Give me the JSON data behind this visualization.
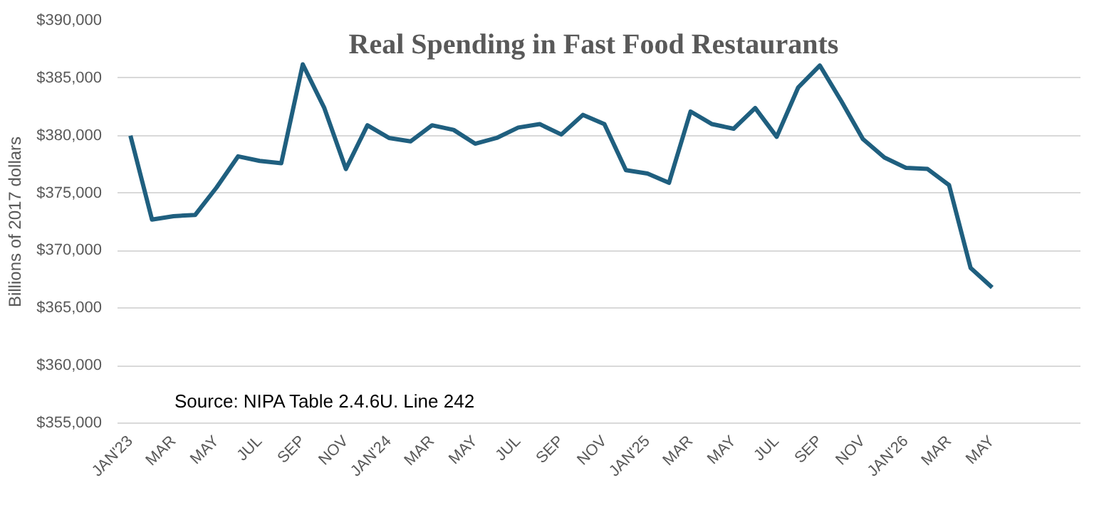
{
  "chart_data": {
    "type": "line",
    "title": "Real Spending in Fast Food Restaurants",
    "ylabel": "Billions of 2017 dollars",
    "categories": [
      "JAN'23",
      null,
      "MAR",
      null,
      "MAY",
      null,
      "JUL",
      null,
      "SEP",
      null,
      "NOV",
      null,
      "JAN'24",
      null,
      "MAR",
      null,
      "MAY",
      null,
      "JUL",
      null,
      "SEP",
      null,
      "NOV",
      null,
      "JAN'25",
      null,
      "MAR",
      null,
      "MAY",
      null,
      "JUL",
      null,
      "SEP",
      null,
      "NOV",
      null,
      "JAN'26",
      null,
      "MAR",
      null,
      "MAY"
    ],
    "series": [
      {
        "color": "#1f5f7f",
        "values": [
          380000,
          372700,
          373000,
          373100,
          375500,
          378200,
          377800,
          377600,
          386200,
          382400,
          377100,
          380900,
          379800,
          379500,
          380900,
          380500,
          379300,
          379800,
          380700,
          381000,
          380100,
          381800,
          381000,
          377000,
          376700,
          375900,
          382100,
          381000,
          380600,
          382400,
          379900,
          384200,
          386100,
          383000,
          379700,
          378100,
          377200,
          377100,
          375700,
          368500,
          366800
        ]
      }
    ],
    "ylim": [
      355000,
      390000
    ],
    "yticks": [
      {
        "value": 355000,
        "label": "$355,000"
      },
      {
        "value": 360000,
        "label": "$360,000"
      },
      {
        "value": 365000,
        "label": "$365,000"
      },
      {
        "value": 370000,
        "label": "$370,000"
      },
      {
        "value": 375000,
        "label": "$375,000"
      },
      {
        "value": 380000,
        "label": "$380,000"
      },
      {
        "value": 385000,
        "label": "$385,000"
      },
      {
        "value": 390000,
        "label": "$390,000"
      }
    ],
    "grid": "y",
    "annotations": [
      "Source: NIPA Table 2.4.6U. Line 242"
    ]
  }
}
